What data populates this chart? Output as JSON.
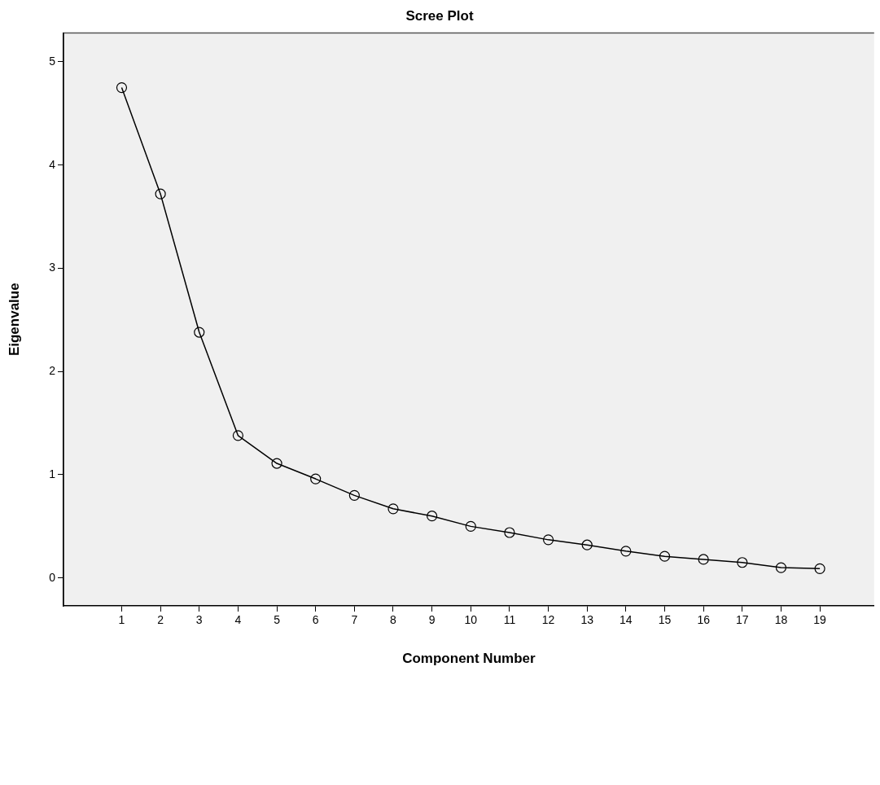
{
  "chart_data": {
    "type": "line",
    "title": "Scree Plot",
    "xlabel": "Component Number",
    "ylabel": "Eigenvalue",
    "x": [
      1,
      2,
      3,
      4,
      5,
      6,
      7,
      8,
      9,
      10,
      11,
      12,
      13,
      14,
      15,
      16,
      17,
      18,
      19
    ],
    "series": [
      {
        "color": "#000000",
        "values": [
          4.75,
          3.72,
          2.38,
          1.38,
          1.11,
          0.96,
          0.8,
          0.67,
          0.6,
          0.5,
          0.44,
          0.37,
          0.32,
          0.26,
          0.21,
          0.18,
          0.15,
          0.1,
          0.09
        ]
      }
    ],
    "xlim": [
      -0.5,
      20.4
    ],
    "xticks": [
      1,
      2,
      3,
      4,
      5,
      6,
      7,
      8,
      9,
      10,
      11,
      12,
      13,
      14,
      15,
      16,
      17,
      18,
      19
    ],
    "ylim": [
      -0.27,
      5.28
    ],
    "yticks": [
      0,
      1,
      2,
      3,
      4,
      5
    ],
    "grid": false,
    "legend": false,
    "marker": "circle",
    "line_style": "solid"
  }
}
